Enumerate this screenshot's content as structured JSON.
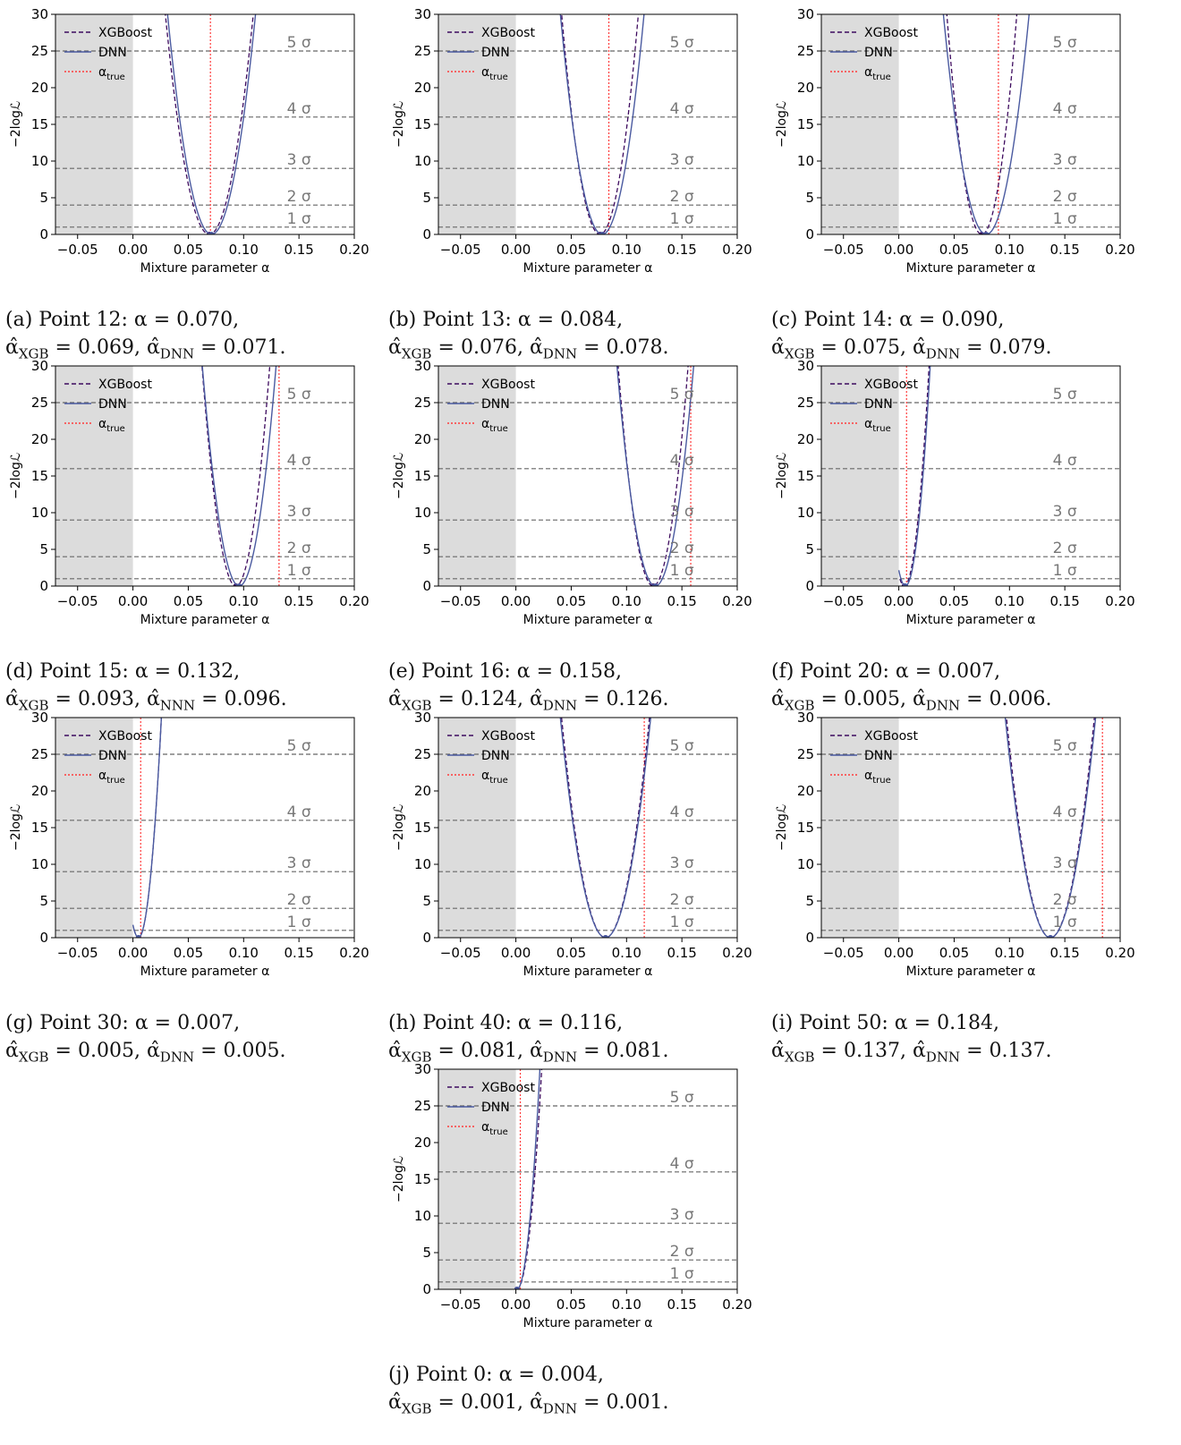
{
  "axis": {
    "xlabel": "Mixture parameter α",
    "ylabel": "−2logℒ",
    "xticks": [
      "−0.05",
      "0.00",
      "0.05",
      "0.10",
      "0.15",
      "0.20"
    ],
    "yticks": [
      "0",
      "5",
      "10",
      "15",
      "20",
      "25",
      "30"
    ]
  },
  "legend": [
    "XGBoost",
    "DNN",
    "α_true"
  ],
  "sigma_labels": [
    "1 σ",
    "2 σ",
    "3 σ",
    "4 σ",
    "5 σ"
  ],
  "colors": {
    "xgboost": "#3d0a5e",
    "dnn": "#4a5aa0",
    "alpha_true": "#ff3b3b",
    "sigma_line": "#666666",
    "shade": "#dcdcdc"
  },
  "panels": [
    {
      "caption1": "(a)  Point 12: α = 0.070,",
      "caption2": "α̂XGB = 0.069, α̂DNN = 0.071."
    },
    {
      "caption1": "(b) Point 13: α = 0.084,",
      "caption2": "α̂XGB = 0.076, α̂DNN = 0.078."
    },
    {
      "caption1": "(c) Point 14: α = 0.090,",
      "caption2": "α̂XGB = 0.075, α̂DNN = 0.079."
    },
    {
      "caption1": "(d) Point 15: α = 0.132,",
      "caption2": "α̂XGB = 0.093, α̂NNN = 0.096."
    },
    {
      "caption1": "(e) Point 16: α = 0.158,",
      "caption2": "α̂XGB = 0.124, α̂DNN = 0.126."
    },
    {
      "caption1": "(f) Point 20: α = 0.007,",
      "caption2": "α̂XGB = 0.005, α̂DNN = 0.006."
    },
    {
      "caption1": "(g) Point 30: α = 0.007,",
      "caption2": "α̂XGB = 0.005, α̂DNN = 0.005."
    },
    {
      "caption1": "(h) Point 40: α = 0.116,",
      "caption2": "α̂XGB = 0.081, α̂DNN = 0.081."
    },
    {
      "caption1": "(i) Point 50: α = 0.184,",
      "caption2": "α̂XGB = 0.137, α̂DNN = 0.137."
    },
    {
      "caption1": "(j) Point 0:  α = 0.004,",
      "caption2": "α̂XGB = 0.001, α̂DNN = 0.001."
    }
  ],
  "chart_data": [
    {
      "type": "line",
      "xlim": [
        -0.07,
        0.2
      ],
      "ylim": [
        0,
        30
      ],
      "sigma_levels": [
        1,
        4,
        9,
        16,
        25
      ],
      "physical_region": "α ≥ 0",
      "alpha_true": 0.07,
      "series": [
        {
          "name": "XGBoost",
          "min_x": 0.069,
          "curvature": 19000
        },
        {
          "name": "DNN",
          "min_x": 0.071,
          "curvature": 19000
        }
      ]
    },
    {
      "type": "line",
      "xlim": [
        -0.07,
        0.2
      ],
      "ylim": [
        0,
        30
      ],
      "sigma_levels": [
        1,
        4,
        9,
        16,
        25
      ],
      "physical_region": "α ≥ 0",
      "alpha_true": 0.084,
      "series": [
        {
          "name": "XGBoost",
          "min_x": 0.076,
          "curvature": 25000
        },
        {
          "name": "DNN",
          "min_x": 0.078,
          "curvature": 21000
        }
      ]
    },
    {
      "type": "line",
      "xlim": [
        -0.07,
        0.2
      ],
      "ylim": [
        0,
        30
      ],
      "sigma_levels": [
        1,
        4,
        9,
        16,
        25
      ],
      "physical_region": "α ≥ 0",
      "alpha_true": 0.09,
      "series": [
        {
          "name": "XGBoost",
          "min_x": 0.075,
          "curvature": 30000
        },
        {
          "name": "DNN",
          "min_x": 0.079,
          "curvature": 20000
        }
      ]
    },
    {
      "type": "line",
      "xlim": [
        -0.07,
        0.2
      ],
      "ylim": [
        0,
        30
      ],
      "sigma_levels": [
        1,
        4,
        9,
        16,
        25
      ],
      "physical_region": "α ≥ 0",
      "alpha_true": 0.132,
      "series": [
        {
          "name": "XGBoost",
          "min_x": 0.093,
          "curvature": 32000
        },
        {
          "name": "DNN",
          "min_x": 0.096,
          "curvature": 27000
        }
      ]
    },
    {
      "type": "line",
      "xlim": [
        -0.07,
        0.2
      ],
      "ylim": [
        0,
        30
      ],
      "sigma_levels": [
        1,
        4,
        9,
        16,
        25
      ],
      "physical_region": "α ≥ 0",
      "alpha_true": 0.158,
      "series": [
        {
          "name": "XGBoost",
          "min_x": 0.124,
          "curvature": 30000
        },
        {
          "name": "DNN",
          "min_x": 0.126,
          "curvature": 25000
        }
      ]
    },
    {
      "type": "line",
      "xlim": [
        -0.07,
        0.2
      ],
      "ylim": [
        0,
        30
      ],
      "sigma_levels": [
        1,
        4,
        9,
        16,
        25
      ],
      "physical_region": "α ≥ 0",
      "alpha_true": 0.007,
      "series": [
        {
          "name": "XGBoost",
          "min_x": 0.005,
          "curvature": 60000,
          "x_start": 0.001
        },
        {
          "name": "DNN",
          "min_x": 0.006,
          "curvature": 60000,
          "x_start": 0.0
        }
      ]
    },
    {
      "type": "line",
      "xlim": [
        -0.07,
        0.2
      ],
      "ylim": [
        0,
        30
      ],
      "sigma_levels": [
        1,
        4,
        9,
        16,
        25
      ],
      "physical_region": "α ≥ 0",
      "alpha_true": 0.007,
      "series": [
        {
          "name": "XGBoost",
          "min_x": 0.005,
          "curvature": 70000,
          "x_start": 0.001
        },
        {
          "name": "DNN",
          "min_x": 0.005,
          "curvature": 70000,
          "x_start": 0.0
        }
      ]
    },
    {
      "type": "line",
      "xlim": [
        -0.07,
        0.2
      ],
      "ylim": [
        0,
        30
      ],
      "sigma_levels": [
        1,
        4,
        9,
        16,
        25
      ],
      "physical_region": "α ≥ 0",
      "alpha_true": 0.116,
      "series": [
        {
          "name": "XGBoost",
          "min_x": 0.081,
          "curvature": 19000
        },
        {
          "name": "DNN",
          "min_x": 0.081,
          "curvature": 18000
        }
      ]
    },
    {
      "type": "line",
      "xlim": [
        -0.07,
        0.2
      ],
      "ylim": [
        0,
        30
      ],
      "sigma_levels": [
        1,
        4,
        9,
        16,
        25
      ],
      "physical_region": "α ≥ 0",
      "alpha_true": 0.184,
      "series": [
        {
          "name": "XGBoost",
          "min_x": 0.137,
          "curvature": 19000
        },
        {
          "name": "DNN",
          "min_x": 0.137,
          "curvature": 18000
        }
      ]
    },
    {
      "type": "line",
      "xlim": [
        -0.07,
        0.2
      ],
      "ylim": [
        0,
        30
      ],
      "sigma_levels": [
        1,
        4,
        9,
        16,
        25
      ],
      "physical_region": "α ≥ 0",
      "alpha_true": 0.004,
      "series": [
        {
          "name": "XGBoost",
          "min_x": 0.001,
          "curvature": 60000,
          "x_start": 0.001
        },
        {
          "name": "DNN",
          "min_x": 0.001,
          "curvature": 70000,
          "x_start": 0.001
        }
      ]
    }
  ]
}
